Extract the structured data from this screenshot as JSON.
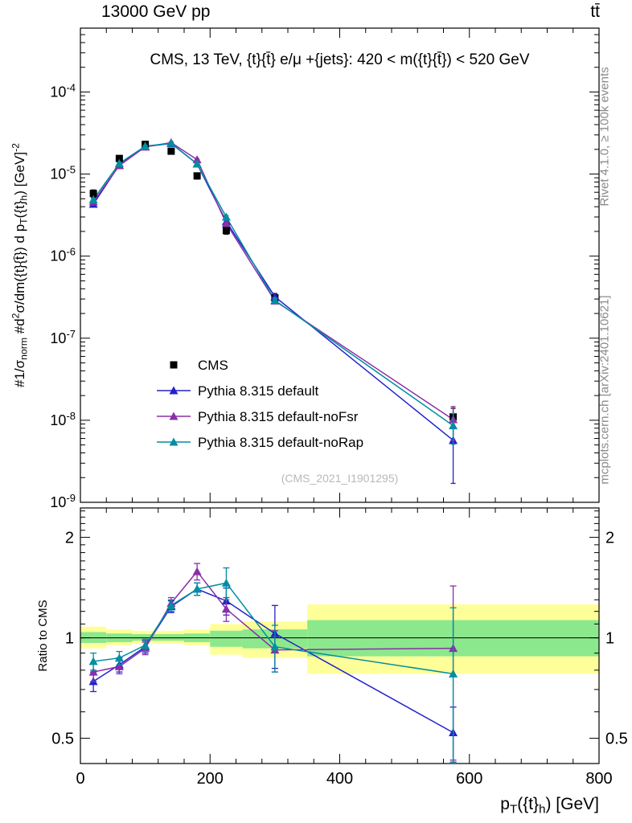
{
  "header": {
    "left": "13000 GeV pp",
    "right": "tt̄"
  },
  "side": {
    "top": "Rivet 4.1.0, ≥ 100k events",
    "bottom": "mcplots.cern.ch [arXiv:2401.10621]"
  },
  "colors": {
    "cms": "#000000",
    "pythia_default": "#2222cc",
    "pythia_noFsr": "#8b2fa8",
    "pythia_noRap": "#008fa0",
    "band_yellow": "#ffff99",
    "band_green": "#8ce88c",
    "watermark": "#b8b8b8",
    "frame": "#000000"
  },
  "chart_data": {
    "type": "line",
    "title": "CMS, 13 TeV, {t}{t̄} e/μ +{jets}: 420 < m({t}{t̄}) < 520 GeV",
    "watermark": "(CMS_2021_I1901295)",
    "xlabel_segments": [
      {
        "t": "p"
      },
      {
        "t": "T",
        "sub": true
      },
      {
        "t": "({t}"
      },
      {
        "t": "h",
        "sub": true
      },
      {
        "t": ") [GeV]"
      }
    ],
    "ylabel_segments": [
      {
        "t": "#"
      },
      {
        "t": "1/σ"
      },
      {
        "t": "norm",
        "sub": true
      },
      {
        "t": " #d"
      },
      {
        "t": "2",
        "sup": true
      },
      {
        "t": "σ/dm({t}{t̄}) d p"
      },
      {
        "t": "T",
        "sub": true
      },
      {
        "t": "({t}"
      },
      {
        "t": "h",
        "sub": true
      },
      {
        "t": ") [GeV]"
      },
      {
        "t": "-2",
        "sup": true
      }
    ],
    "x": [
      20,
      60,
      100,
      140,
      180,
      225,
      300,
      575
    ],
    "xlim": [
      0,
      800
    ],
    "x_ticks": [
      0,
      200,
      400,
      600,
      800
    ],
    "top_panel": {
      "ylog": true,
      "ylim": [
        1e-09,
        0.0006
      ],
      "y_tick_exponents": [
        -4,
        -5,
        -6,
        -7,
        -8,
        -9
      ],
      "series": [
        {
          "name": "CMS",
          "marker": "square",
          "color_key": "cms",
          "line": false,
          "y": [
            5.8e-06,
            1.55e-05,
            2.3e-05,
            1.9e-05,
            9.5e-06,
            2.05e-06,
            3.1e-07,
            1.1e-08
          ],
          "yerr": [
            6e-07,
            1.2e-06,
            1.6e-06,
            1.4e-06,
            8e-07,
            2e-07,
            4e-08,
            3e-09
          ]
        },
        {
          "name": "Pythia 8.315 default",
          "marker": "triangle",
          "color_key": "pythia_default",
          "line": true,
          "y": [
            4.3e-06,
            1.29e-05,
            2.16e-05,
            2.36e-05,
            1.33e-05,
            2.64e-06,
            3.2e-07,
            5.7e-09
          ],
          "yerr": [
            1.5e-07,
            3e-07,
            4e-07,
            4e-07,
            3e-07,
            1e-07,
            2.5e-08,
            4e-09
          ]
        },
        {
          "name": "Pythia 8.315 default-noFsr",
          "marker": "triangle",
          "color_key": "pythia_noFsr",
          "line": true,
          "y": [
            4.6e-06,
            1.27e-05,
            2.14e-05,
            2.42e-05,
            1.5e-05,
            2.5e-06,
            2.85e-07,
            1.02e-08
          ],
          "yerr": [
            1.5e-07,
            3e-07,
            4e-07,
            4e-07,
            3e-07,
            1e-07,
            2e-08,
            4.5e-09
          ]
        },
        {
          "name": "Pythia 8.315 default-noRap",
          "marker": "triangle",
          "color_key": "pythia_noRap",
          "line": true,
          "y": [
            4.9e-06,
            1.35e-05,
            2.19e-05,
            2.38e-05,
            1.33e-05,
            3e-06,
            2.9e-07,
            8.6e-09
          ],
          "yerr": [
            1.5e-07,
            3e-07,
            4e-07,
            4e-07,
            3e-07,
            1.2e-07,
            2e-08,
            3.5e-09
          ]
        }
      ]
    },
    "ratio_panel": {
      "ylabel": "Ratio to CMS",
      "ylog": true,
      "ylim": [
        0.42,
        2.45
      ],
      "y_ticks": [
        0.5,
        1,
        2
      ],
      "bands": {
        "edges": [
          0,
          40,
          80,
          120,
          160,
          200,
          250,
          350,
          800
        ],
        "yellow": [
          [
            0.93,
            1.08
          ],
          [
            0.95,
            1.06
          ],
          [
            0.96,
            1.05
          ],
          [
            0.96,
            1.05
          ],
          [
            0.95,
            1.06
          ],
          [
            0.89,
            1.1
          ],
          [
            0.87,
            1.12
          ],
          [
            0.78,
            1.26
          ]
        ],
        "green": [
          [
            0.965,
            1.04
          ],
          [
            0.97,
            1.03
          ],
          [
            0.98,
            1.025
          ],
          [
            0.98,
            1.025
          ],
          [
            0.97,
            1.03
          ],
          [
            0.94,
            1.05
          ],
          [
            0.93,
            1.06
          ],
          [
            0.88,
            1.13
          ]
        ]
      },
      "series": [
        {
          "name": "Pythia 8.315 default",
          "marker": "triangle",
          "color_key": "pythia_default",
          "line": true,
          "y": [
            0.74,
            0.83,
            0.94,
            1.24,
            1.4,
            1.29,
            1.03,
            0.52
          ],
          "yerr": [
            0.05,
            0.04,
            0.04,
            0.05,
            0.06,
            0.12,
            0.22,
            0.1
          ]
        },
        {
          "name": "Pythia 8.315 default-noFsr",
          "marker": "triangle",
          "color_key": "pythia_noFsr",
          "line": true,
          "y": [
            0.79,
            0.82,
            0.93,
            1.27,
            1.58,
            1.22,
            0.92,
            0.93
          ],
          "yerr": [
            0.05,
            0.04,
            0.04,
            0.05,
            0.09,
            0.1,
            0.13,
            0.5
          ]
        },
        {
          "name": "Pythia 8.315 default-noRap",
          "marker": "triangle",
          "color_key": "pythia_noRap",
          "line": true,
          "y": [
            0.85,
            0.87,
            0.95,
            1.25,
            1.4,
            1.46,
            0.94,
            0.78
          ],
          "yerr": [
            0.05,
            0.04,
            0.04,
            0.05,
            0.06,
            0.16,
            0.15,
            0.45
          ]
        }
      ]
    },
    "legend": [
      "CMS",
      "Pythia 8.315 default",
      "Pythia 8.315 default-noFsr",
      "Pythia 8.315 default-noRap"
    ]
  }
}
